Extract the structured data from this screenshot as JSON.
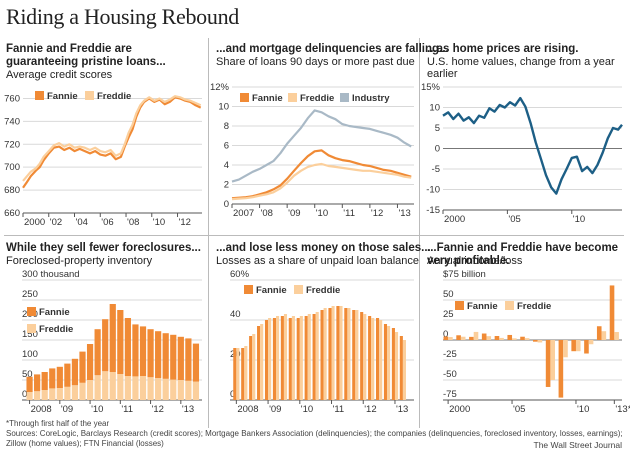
{
  "headline": "Riding a Housing Rebound",
  "source_note": "*Through first half of the year",
  "sources_1": "Sources: CoreLogic, Barclays Research (credit scores); Mortgage Bankers Association (delinquencies); the companies (delinquencies, foreclosed inventory, losses, earnings);",
  "sources_2": "Zillow (home values); FTN Financial (losses)",
  "credit": "The Wall Street Journal",
  "colors": {
    "fannie": "#f08a35",
    "freddie": "#fbcf9c",
    "industry": "#a9b9c6",
    "homes": "#1d5f86",
    "grid": "#d9d9d9",
    "axis": "#555555"
  },
  "chart_data": [
    {
      "id": "credit",
      "type": "line",
      "title": "Fannie and Freddie are guaranteeing pristine loans...",
      "subtitle": "Average credit scores",
      "legend": [
        "Fannie",
        "Freddie"
      ],
      "ylim": [
        660,
        770
      ],
      "yticks": [
        660,
        680,
        700,
        720,
        740,
        760
      ],
      "xlim": [
        2000,
        2013.9
      ],
      "xticks": [
        {
          "x": 2000,
          "label": "2000"
        },
        {
          "x": 2002,
          "label": "'02"
        },
        {
          "x": 2004,
          "label": "'04"
        },
        {
          "x": 2006,
          "label": "'06"
        },
        {
          "x": 2008,
          "label": "'08"
        },
        {
          "x": 2010,
          "label": "'10"
        },
        {
          "x": 2012,
          "label": "'12"
        }
      ],
      "series": [
        {
          "name": "Fannie",
          "x": [
            2000,
            2000.3,
            2000.6,
            2001,
            2001.3,
            2001.6,
            2002,
            2002.4,
            2002.8,
            2003.2,
            2003.6,
            2004,
            2004.4,
            2004.8,
            2005.2,
            2005.6,
            2006,
            2006.4,
            2006.8,
            2007.2,
            2007.6,
            2007.9,
            2008.2,
            2008.5,
            2008.8,
            2009.1,
            2009.4,
            2009.8,
            2010.2,
            2010.6,
            2011,
            2011.4,
            2011.8,
            2012.2,
            2012.6,
            2013,
            2013.4,
            2013.8
          ],
          "values": [
            682,
            687,
            692,
            697,
            700,
            706,
            712,
            717,
            718,
            715,
            717,
            714,
            716,
            714,
            712,
            714,
            711,
            710,
            712,
            707,
            709,
            718,
            726,
            733,
            744,
            752,
            757,
            760,
            757,
            759,
            755,
            757,
            761,
            760,
            758,
            757,
            754,
            752
          ]
        },
        {
          "name": "Freddie",
          "x": [
            2000,
            2000.3,
            2000.6,
            2001,
            2001.3,
            2001.6,
            2002,
            2002.4,
            2002.8,
            2003.2,
            2003.6,
            2004,
            2004.4,
            2004.8,
            2005.2,
            2005.6,
            2006,
            2006.4,
            2006.8,
            2007.2,
            2007.6,
            2007.9,
            2008.2,
            2008.5,
            2008.8,
            2009.1,
            2009.4,
            2009.8,
            2010.2,
            2010.6,
            2011,
            2011.4,
            2011.8,
            2012.2,
            2012.6,
            2013,
            2013.4,
            2013.8
          ],
          "values": [
            688,
            692,
            696,
            699,
            703,
            709,
            714,
            719,
            721,
            718,
            720,
            717,
            718,
            717,
            715,
            717,
            714,
            713,
            715,
            710,
            712,
            720,
            730,
            737,
            747,
            754,
            758,
            761,
            758,
            760,
            757,
            759,
            762,
            761,
            759,
            758,
            756,
            754
          ]
        }
      ]
    },
    {
      "id": "delinq",
      "type": "line",
      "title": "...and mortgage delinquencies are falling...",
      "subtitle": "Share of loans 90 days or more past due",
      "legend": [
        "Fannie",
        "Freddie",
        "Industry"
      ],
      "ylim": [
        0,
        12
      ],
      "yticks": [
        0,
        2,
        4,
        6,
        8,
        10,
        12
      ],
      "ytick_labels": [
        "0",
        "2",
        "4",
        "6",
        "8",
        "10",
        "12%"
      ],
      "xlim": [
        2007,
        2013.6
      ],
      "xticks": [
        {
          "x": 2007,
          "label": "2007"
        },
        {
          "x": 2008,
          "label": "'08"
        },
        {
          "x": 2009,
          "label": "'09"
        },
        {
          "x": 2010,
          "label": "'10"
        },
        {
          "x": 2011,
          "label": "'11"
        },
        {
          "x": 2012,
          "label": "'12"
        },
        {
          "x": 2013,
          "label": "'13"
        }
      ],
      "series": [
        {
          "name": "Industry",
          "x": [
            2007,
            2007.25,
            2007.5,
            2007.75,
            2008,
            2008.25,
            2008.5,
            2008.75,
            2009,
            2009.25,
            2009.5,
            2009.75,
            2010,
            2010.25,
            2010.5,
            2010.75,
            2011,
            2011.25,
            2011.5,
            2011.75,
            2012,
            2012.25,
            2012.5,
            2012.75,
            2013,
            2013.25,
            2013.5
          ],
          "values": [
            2.3,
            2.5,
            2.9,
            3.3,
            3.6,
            4.0,
            4.4,
            5.2,
            6.2,
            7.0,
            7.8,
            8.8,
            9.6,
            9.4,
            9.0,
            8.7,
            8.2,
            8.0,
            7.9,
            7.8,
            7.7,
            7.5,
            7.3,
            7.1,
            6.8,
            6.3,
            5.9
          ]
        },
        {
          "name": "Fannie",
          "x": [
            2007,
            2007.25,
            2007.5,
            2007.75,
            2008,
            2008.25,
            2008.5,
            2008.75,
            2009,
            2009.25,
            2009.5,
            2009.75,
            2010,
            2010.25,
            2010.5,
            2010.75,
            2011,
            2011.25,
            2011.5,
            2011.75,
            2012,
            2012.25,
            2012.5,
            2012.75,
            2013,
            2013.25,
            2013.5
          ],
          "values": [
            0.6,
            0.65,
            0.7,
            0.8,
            1.0,
            1.2,
            1.5,
            1.9,
            2.6,
            3.4,
            4.2,
            4.9,
            5.4,
            5.5,
            5.0,
            4.7,
            4.5,
            4.4,
            4.2,
            4.0,
            3.9,
            3.7,
            3.5,
            3.4,
            3.2,
            3.0,
            2.8
          ]
        },
        {
          "name": "Freddie",
          "x": [
            2007,
            2007.25,
            2007.5,
            2007.75,
            2008,
            2008.25,
            2008.5,
            2008.75,
            2009,
            2009.25,
            2009.5,
            2009.75,
            2010,
            2010.25,
            2010.5,
            2010.75,
            2011,
            2011.25,
            2011.5,
            2011.75,
            2012,
            2012.25,
            2012.5,
            2012.75,
            2013,
            2013.25,
            2013.5
          ],
          "values": [
            0.5,
            0.55,
            0.6,
            0.7,
            0.85,
            1.0,
            1.2,
            1.6,
            2.2,
            2.9,
            3.4,
            3.8,
            4.0,
            4.1,
            3.9,
            3.8,
            3.7,
            3.6,
            3.5,
            3.4,
            3.4,
            3.3,
            3.2,
            3.1,
            3.0,
            2.8,
            2.7
          ]
        }
      ]
    },
    {
      "id": "homes",
      "type": "line",
      "title": "...as home prices are rising.",
      "subtitle": "U.S. home values, change from a year earlier",
      "ylim": [
        -15,
        15
      ],
      "yticks": [
        -15,
        -10,
        -5,
        0,
        5,
        10,
        15
      ],
      "ytick_labels": [
        "-15",
        "-10",
        "-5",
        "0",
        "5",
        "10",
        "15%"
      ],
      "xlim": [
        2000,
        2013.9
      ],
      "xticks": [
        {
          "x": 2000,
          "label": "2000"
        },
        {
          "x": 2005,
          "label": "'05"
        },
        {
          "x": 2010,
          "label": "'10"
        }
      ],
      "series": [
        {
          "name": "U.S. home values",
          "x": [
            2000,
            2000.4,
            2000.8,
            2001.2,
            2001.6,
            2002,
            2002.4,
            2002.8,
            2003.2,
            2003.6,
            2004,
            2004.4,
            2004.8,
            2005.2,
            2005.6,
            2006,
            2006.4,
            2006.8,
            2007.2,
            2007.6,
            2008,
            2008.4,
            2008.8,
            2009.2,
            2009.6,
            2010,
            2010.4,
            2010.8,
            2011.2,
            2011.6,
            2012,
            2012.4,
            2012.8,
            2013.2,
            2013.6,
            2013.9
          ],
          "values": [
            8.0,
            8.8,
            7.2,
            8.5,
            6.8,
            7.6,
            6.2,
            8.0,
            7.5,
            9.8,
            9.0,
            10.6,
            10.0,
            11.3,
            10.5,
            12.3,
            10.2,
            6.2,
            1.5,
            -2.5,
            -6.5,
            -9.5,
            -11.0,
            -7.5,
            -5.0,
            -2.3,
            -2.0,
            -5.5,
            -4.5,
            -6.0,
            -4.0,
            -1.0,
            2.5,
            5.0,
            4.6,
            5.8
          ]
        }
      ]
    },
    {
      "id": "foreclosed",
      "type": "bar",
      "stacked": true,
      "title": "While they sell fewer foreclosures...",
      "subtitle": "Foreclosed-property inventory",
      "legend": [
        "Fannie",
        "Freddie"
      ],
      "ylim": [
        0,
        300
      ],
      "yticks": [
        0,
        50,
        100,
        150,
        200,
        250,
        300
      ],
      "ytick_labels": [
        "0",
        "50",
        "100",
        "150",
        "200",
        "250",
        "300 thousand"
      ],
      "xlim": [
        2007.75,
        2013.7
      ],
      "xticks": [
        {
          "x": 2008,
          "label": "2008"
        },
        {
          "x": 2009,
          "label": "'09"
        },
        {
          "x": 2010,
          "label": "'10"
        },
        {
          "x": 2011,
          "label": "'11"
        },
        {
          "x": 2012,
          "label": "'12"
        },
        {
          "x": 2013,
          "label": "'13"
        }
      ],
      "x": [
        2008,
        2008.25,
        2008.5,
        2008.75,
        2009,
        2009.25,
        2009.5,
        2009.75,
        2010,
        2010.25,
        2010.5,
        2010.75,
        2011,
        2011.25,
        2011.5,
        2011.75,
        2012,
        2012.25,
        2012.5,
        2012.75,
        2013,
        2013.25,
        2013.5
      ],
      "series": [
        {
          "name": "Freddie",
          "values": [
            20,
            22,
            25,
            29,
            30,
            33,
            37,
            43,
            50,
            62,
            72,
            70,
            65,
            60,
            59,
            60,
            57,
            55,
            53,
            51,
            50,
            48,
            46
          ]
        },
        {
          "name": "Fannie",
          "values": [
            38,
            42,
            45,
            50,
            53,
            58,
            66,
            78,
            90,
            115,
            130,
            170,
            160,
            145,
            130,
            124,
            120,
            117,
            114,
            112,
            108,
            106,
            95
          ]
        }
      ]
    },
    {
      "id": "losses",
      "type": "bar",
      "title": "...and lose less money on those sales...",
      "subtitle": "Losses as a share of unpaid loan balance",
      "legend": [
        "Fannie",
        "Freddie"
      ],
      "ylim": [
        0,
        60
      ],
      "yticks": [
        0,
        20,
        40,
        60
      ],
      "ytick_labels": [
        "0",
        "20",
        "40",
        "60%"
      ],
      "xlim": [
        2007.8,
        2013.6
      ],
      "xticks": [
        {
          "x": 2008,
          "label": "2008"
        },
        {
          "x": 2009,
          "label": "'09"
        },
        {
          "x": 2010,
          "label": "'10"
        },
        {
          "x": 2011,
          "label": "'11"
        },
        {
          "x": 2012,
          "label": "'12"
        },
        {
          "x": 2013,
          "label": "'13"
        }
      ],
      "x": [
        2008,
        2008.25,
        2008.5,
        2008.75,
        2009,
        2009.25,
        2009.5,
        2009.75,
        2010,
        2010.25,
        2010.5,
        2010.75,
        2011,
        2011.25,
        2011.5,
        2011.75,
        2012,
        2012.25,
        2012.5,
        2012.75,
        2013,
        2013.25
      ],
      "series": [
        {
          "name": "Fannie",
          "values": [
            26,
            26,
            32,
            37,
            40,
            41,
            42,
            41,
            41,
            42,
            43,
            45,
            46,
            47,
            46,
            45,
            44,
            42,
            41,
            38,
            36,
            32
          ]
        },
        {
          "name": "Freddie",
          "values": [
            26,
            27,
            33,
            38,
            41,
            42,
            43,
            42,
            42,
            43,
            44,
            46,
            47,
            47,
            46,
            45,
            43,
            41,
            40,
            37,
            34,
            30
          ]
        }
      ]
    },
    {
      "id": "income",
      "type": "bar",
      "title": "...Fannie and Freddie have become very profitable.",
      "subtitle": "Annual income/loss",
      "legend": [
        "Fannie",
        "Freddie"
      ],
      "ylim": [
        -75,
        75
      ],
      "yticks": [
        -75,
        -50,
        -25,
        0,
        25,
        50,
        75
      ],
      "ytick_labels": [
        "-75",
        "-50",
        "-25",
        "0",
        "25",
        "50",
        "$75 billion"
      ],
      "xlim": [
        1999.6,
        2013.6
      ],
      "xticks": [
        {
          "x": 2000,
          "label": "2000"
        },
        {
          "x": 2005,
          "label": "'05"
        },
        {
          "x": 2010,
          "label": "'10"
        },
        {
          "x": 2013,
          "label": "'13*"
        }
      ],
      "x": [
        2000,
        2001,
        2002,
        2003,
        2004,
        2005,
        2006,
        2007,
        2008,
        2009,
        2010,
        2011,
        2012,
        2013
      ],
      "series": [
        {
          "name": "Fannie",
          "values": [
            4.4,
            5.9,
            3.9,
            8.1,
            5.0,
            6.3,
            4.1,
            -2.1,
            -58.7,
            -72.0,
            -14.0,
            -16.9,
            17.2,
            68.2
          ]
        },
        {
          "name": "Freddie",
          "values": [
            3.7,
            4.1,
            10.1,
            4.8,
            2.6,
            2.1,
            2.3,
            -3.1,
            -50.1,
            -21.6,
            -14.0,
            -5.3,
            11.0,
            10.0
          ]
        }
      ]
    }
  ]
}
